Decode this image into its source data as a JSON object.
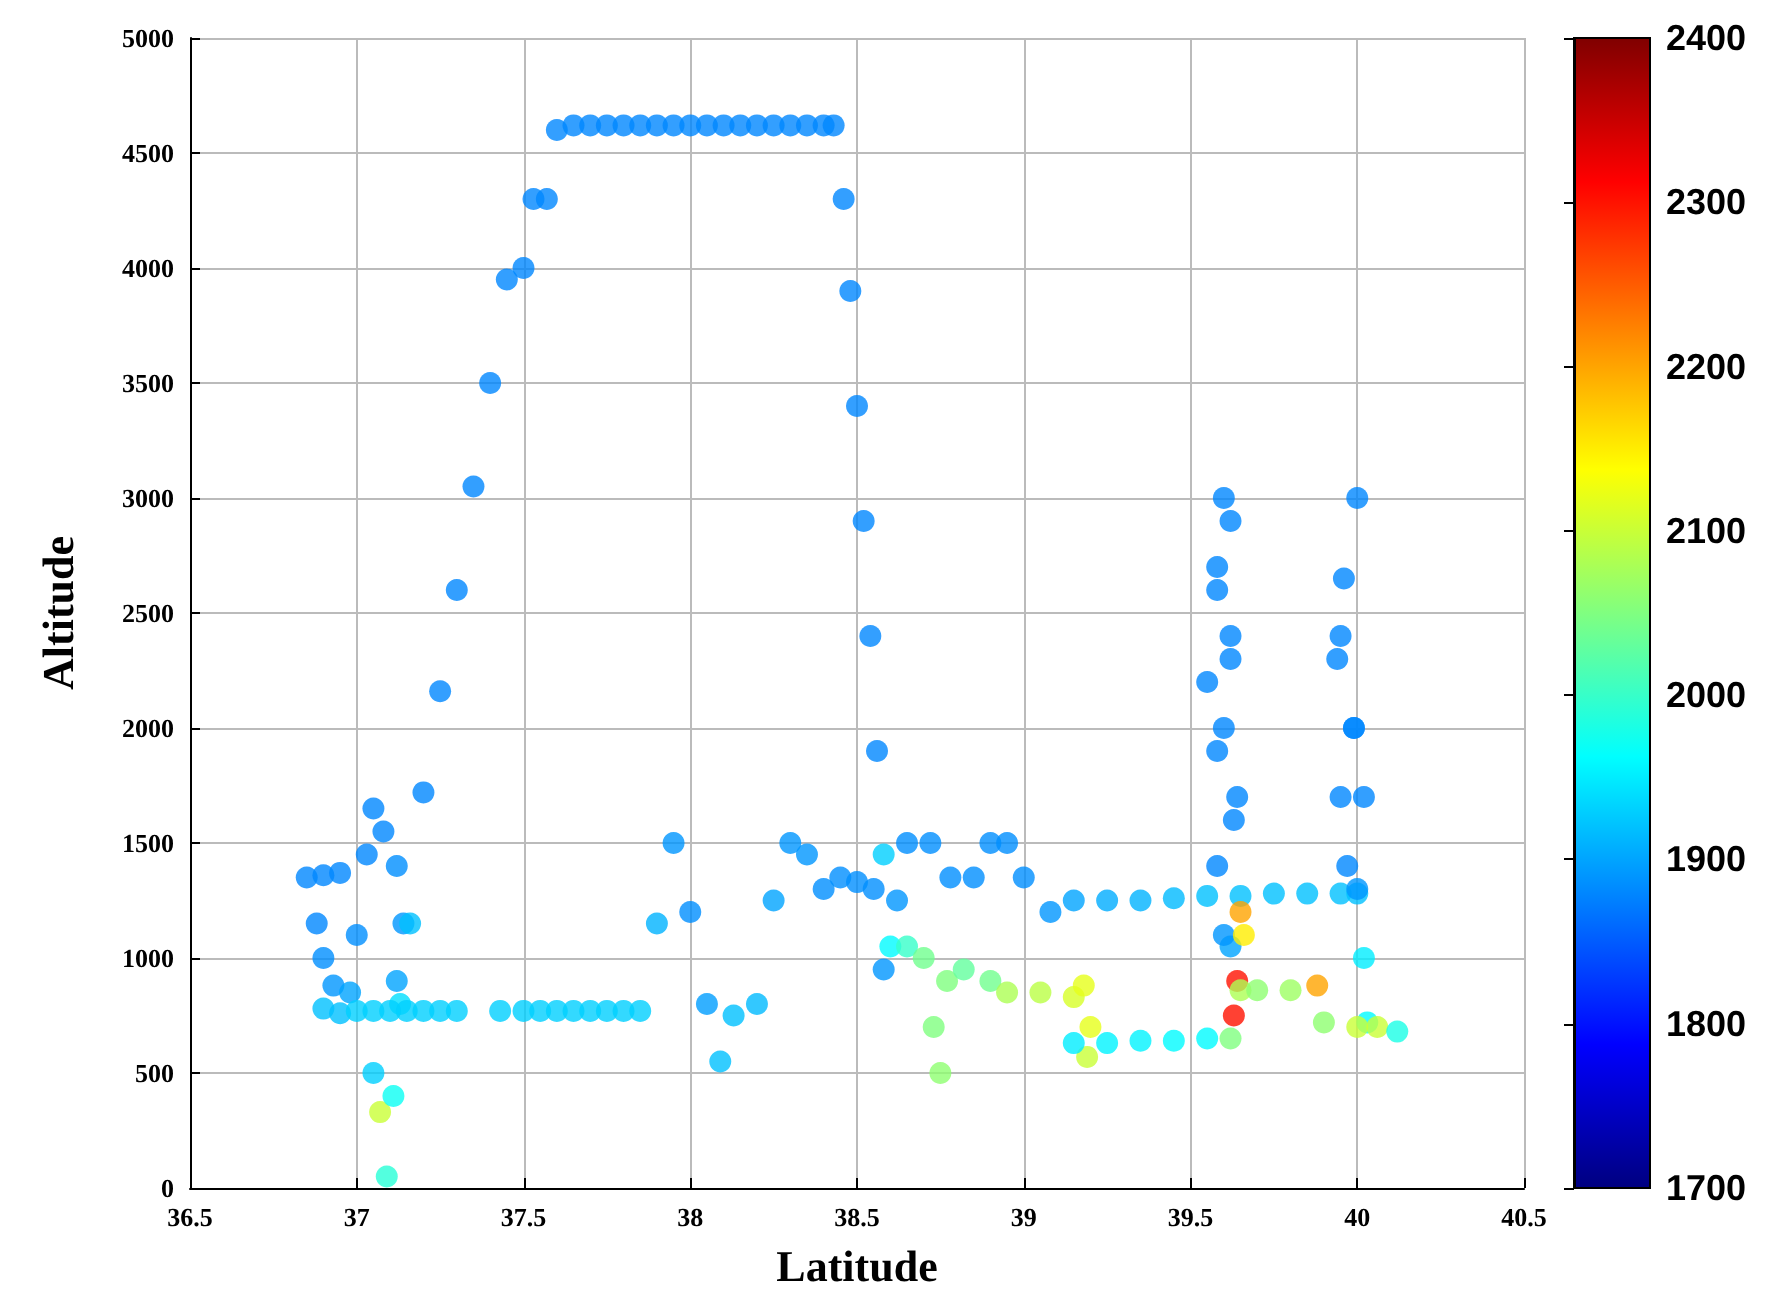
{
  "chart_data": {
    "type": "scatter",
    "xlabel": "Latitude",
    "ylabel": "Altitude",
    "xlim": [
      36.5,
      40.5
    ],
    "xticks": [
      36.5,
      37,
      37.5,
      38,
      38.5,
      39,
      39.5,
      40,
      40.5
    ],
    "ylim": [
      0,
      5000
    ],
    "yticks": [
      0,
      500,
      1000,
      1500,
      2000,
      2500,
      3000,
      3500,
      4000,
      4500,
      5000
    ],
    "clim": [
      1700,
      2400
    ],
    "cticks": [
      1700,
      1800,
      1900,
      2000,
      2100,
      2200,
      2300,
      2400
    ],
    "grid": true,
    "marker": "circle",
    "x": [
      36.85,
      36.9,
      36.95,
      36.88,
      36.9,
      36.93,
      36.9,
      36.95,
      36.98,
      37.0,
      37.03,
      37.05,
      37.08,
      37.12,
      37.14,
      37.12,
      37.05,
      37.07,
      37.09,
      37.11,
      37.13,
      37.16,
      37.0,
      37.05,
      37.1,
      37.15,
      37.2,
      37.25,
      37.3,
      37.43,
      37.5,
      37.55,
      37.6,
      37.65,
      37.7,
      37.75,
      37.8,
      37.85,
      37.9,
      37.95,
      38.0,
      38.05,
      38.09,
      38.13,
      38.2,
      38.25,
      38.3,
      38.35,
      38.4,
      38.45,
      38.5,
      38.55,
      38.58,
      38.62,
      38.65,
      38.72,
      38.78,
      38.85,
      38.9,
      38.95,
      39.0,
      39.08,
      39.15,
      39.25,
      39.35,
      39.45,
      39.55,
      39.65,
      39.75,
      39.85,
      39.95,
      40.0,
      40.02,
      40.03,
      37.2,
      37.25,
      37.3,
      37.35,
      37.4,
      37.45,
      37.5,
      37.53,
      37.57,
      37.6,
      37.65,
      37.7,
      37.75,
      37.8,
      37.85,
      37.9,
      37.95,
      38.0,
      38.05,
      38.1,
      38.15,
      38.2,
      38.25,
      38.3,
      38.35,
      38.4,
      38.43,
      38.46,
      38.48,
      38.5,
      38.52,
      38.54,
      38.56,
      38.58,
      38.6,
      38.65,
      38.7,
      38.73,
      38.75,
      38.77,
      38.82,
      38.9,
      38.95,
      39.05,
      39.15,
      39.18,
      39.2,
      39.19,
      39.15,
      39.25,
      39.35,
      39.45,
      39.55,
      39.62,
      39.63,
      39.64,
      39.65,
      39.7,
      39.8,
      39.88,
      39.9,
      40.0,
      40.06,
      40.12,
      39.62,
      39.6,
      39.58,
      39.63,
      39.58,
      39.55,
      39.62,
      39.58,
      39.6,
      39.62,
      39.58,
      39.62,
      39.6,
      39.64,
      39.65,
      39.66,
      40.0,
      39.96,
      39.95,
      39.99,
      39.95,
      39.97,
      40.0,
      40.02,
      39.99,
      39.94
    ],
    "values": [
      1350,
      1360,
      1370,
      1150,
      1000,
      880,
      780,
      760,
      850,
      1100,
      1450,
      1650,
      1550,
      1400,
      1150,
      900,
      500,
      330,
      50,
      400,
      800,
      1150,
      770,
      770,
      770,
      770,
      770,
      770,
      770,
      770,
      770,
      770,
      770,
      770,
      770,
      770,
      770,
      770,
      1150,
      1500,
      1200,
      800,
      550,
      750,
      800,
      1250,
      1500,
      1450,
      1300,
      1350,
      1330,
      1300,
      950,
      1250,
      1500,
      1500,
      1350,
      1350,
      1500,
      1500,
      1350,
      1200,
      1250,
      1250,
      1250,
      1260,
      1270,
      1270,
      1280,
      1280,
      1280,
      1280,
      1000,
      720,
      1720,
      2160,
      2600,
      3050,
      3500,
      3950,
      4000,
      4300,
      4300,
      4600,
      4620,
      4620,
      4620,
      4620,
      4620,
      4620,
      4620,
      4620,
      4620,
      4620,
      4620,
      4620,
      4620,
      4620,
      4620,
      4620,
      4620,
      4300,
      3900,
      3400,
      2900,
      2400,
      1900,
      1450,
      1050,
      1050,
      1000,
      700,
      500,
      900,
      950,
      900,
      850,
      850,
      830,
      880,
      700,
      570,
      630,
      630,
      640,
      640,
      650,
      650,
      750,
      900,
      860,
      860,
      860,
      880,
      720,
      700,
      700,
      680,
      1050,
      1100,
      1400,
      1600,
      1900,
      2200,
      2400,
      2700,
      3000,
      2900,
      2600,
      2300,
      2000,
      1700,
      1200,
      1100,
      3000,
      2650,
      2400,
      2000,
      1700,
      1400,
      1300,
      1700,
      2000,
      2300
    ],
    "cvalues": [
      1880,
      1880,
      1880,
      1880,
      1885,
      1890,
      1920,
      1920,
      1900,
      1885,
      1880,
      1880,
      1880,
      1885,
      1890,
      1900,
      1930,
      2100,
      1990,
      1970,
      1940,
      1920,
      1930,
      1930,
      1930,
      1930,
      1930,
      1930,
      1930,
      1930,
      1930,
      1930,
      1930,
      1930,
      1930,
      1930,
      1930,
      1930,
      1910,
      1890,
      1885,
      1895,
      1920,
      1920,
      1915,
      1900,
      1890,
      1890,
      1885,
      1885,
      1885,
      1885,
      1890,
      1890,
      1885,
      1885,
      1885,
      1885,
      1885,
      1885,
      1885,
      1890,
      1900,
      1905,
      1910,
      1915,
      1920,
      1920,
      1920,
      1920,
      1920,
      1920,
      1950,
      1960,
      1880,
      1880,
      1880,
      1880,
      1880,
      1880,
      1880,
      1880,
      1880,
      1880,
      1880,
      1880,
      1880,
      1880,
      1880,
      1880,
      1880,
      1880,
      1880,
      1880,
      1880,
      1880,
      1880,
      1880,
      1880,
      1880,
      1880,
      1880,
      1880,
      1880,
      1880,
      1880,
      1880,
      1930,
      1960,
      2000,
      2040,
      2050,
      2060,
      2050,
      2030,
      2040,
      2080,
      2090,
      2110,
      2120,
      2120,
      2100,
      1950,
      1955,
      1955,
      1960,
      1960,
      2050,
      2300,
      2300,
      2080,
      2060,
      2070,
      2200,
      2060,
      2100,
      2100,
      1980,
      1900,
      1890,
      1880,
      1880,
      1880,
      1880,
      1880,
      1880,
      1880,
      1880,
      1880,
      1880,
      1880,
      1880,
      2200,
      2150,
      1880,
      1880,
      1880,
      1880,
      1880,
      1880,
      1890,
      1880,
      1880,
      1880
    ]
  }
}
